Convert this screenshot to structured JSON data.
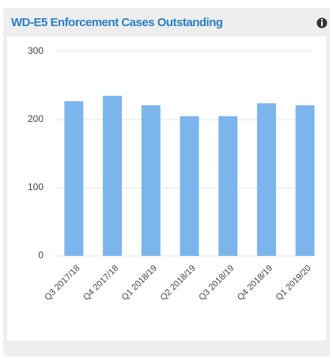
{
  "chart_data": {
    "type": "bar",
    "title": "WD-E5 Enforcement Cases Outstanding",
    "categories": [
      "Q3 2017/18",
      "Q4 2017/18",
      "Q1 2018/19",
      "Q2 2018/19",
      "Q3 2018/19",
      "Q4 2018/19",
      "Q1 2019/20"
    ],
    "values": [
      227,
      235,
      221,
      205,
      205,
      224,
      221
    ],
    "color": "#7cb5ec",
    "ylim": [
      0,
      300
    ],
    "yticks": [
      0,
      100,
      200,
      300
    ],
    "grid": true
  }
}
